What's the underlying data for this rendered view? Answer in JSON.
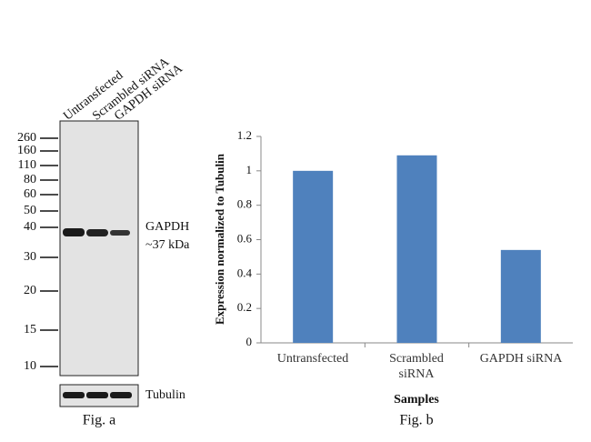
{
  "blot": {
    "lanes": [
      "Untransfected",
      "Scrambled siRNA",
      "GAPDH siRNA"
    ],
    "markers": [
      260,
      160,
      110,
      80,
      60,
      50,
      40,
      30,
      20,
      15,
      10
    ],
    "band_label": "GAPDH",
    "band_size": "~37 kDa",
    "loading_control": "Tubulin",
    "caption": "Fig. a"
  },
  "chart_data": {
    "type": "bar",
    "caption": "Fig. b",
    "xlabel": "Samples",
    "ylabel": "Expression normalized to Tubulin",
    "categories": [
      "Untransfected",
      "Scrambled siRNA",
      "GAPDH siRNA"
    ],
    "values": [
      1.0,
      1.09,
      0.54
    ],
    "color": "#4f81bd",
    "ylim": [
      0,
      1.2
    ],
    "yticks": [
      0,
      0.2,
      0.4,
      0.6,
      0.8,
      1,
      1.2
    ]
  }
}
